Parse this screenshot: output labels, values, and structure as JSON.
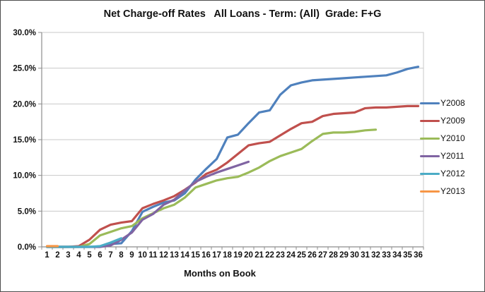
{
  "chart": {
    "title_label": "Net Charge-off Rates   All Loans - Term: (All)  Grade: F+G",
    "x_axis_label": "Months on Book"
  },
  "chart_data": {
    "type": "line",
    "title": "Net Charge-off Rates   All Loans - Term: (All)  Grade: F+G",
    "xlabel": "Months on Book",
    "ylabel": "",
    "x": [
      1,
      2,
      3,
      4,
      5,
      6,
      7,
      8,
      9,
      10,
      11,
      12,
      13,
      14,
      15,
      16,
      17,
      18,
      19,
      20,
      21,
      22,
      23,
      24,
      25,
      26,
      27,
      28,
      29,
      30,
      31,
      32,
      33,
      34,
      35,
      36
    ],
    "ylim": [
      0,
      30
    ],
    "yticks": [
      0,
      5,
      10,
      15,
      20,
      25,
      30
    ],
    "ytick_labels": [
      "0.0%",
      "5.0%",
      "10.0%",
      "15.0%",
      "20.0%",
      "25.0%",
      "30.0%"
    ],
    "grid": true,
    "legend_position": "right",
    "axis_color": "#8c8c8c",
    "grid_color": "#c8c8c8",
    "text_color": "#111111",
    "series": [
      {
        "name": "Y2008",
        "color": "#4F81BD",
        "values": [
          0,
          0,
          0,
          0,
          0,
          0,
          0.4,
          0.5,
          2.2,
          4.9,
          5.6,
          6.2,
          6.5,
          7.5,
          9.4,
          10.9,
          12.3,
          15.3,
          15.7,
          17.3,
          18.8,
          19.1,
          21.3,
          22.6,
          23.0,
          23.3,
          23.4,
          23.5,
          23.6,
          23.7,
          23.8,
          23.9,
          24.0,
          24.4,
          24.9,
          25.2
        ]
      },
      {
        "name": "Y2009",
        "color": "#C0504D",
        "values": [
          0,
          0,
          0,
          0.1,
          1.0,
          2.4,
          3.1,
          3.4,
          3.6,
          5.4,
          6.0,
          6.5,
          7.1,
          8.0,
          9.0,
          10.2,
          10.8,
          11.8,
          13.0,
          14.2,
          14.5,
          14.7,
          15.6,
          16.5,
          17.3,
          17.5,
          18.3,
          18.6,
          18.7,
          18.8,
          19.4,
          19.5,
          19.5,
          19.6,
          19.7,
          19.7
        ]
      },
      {
        "name": "Y2010",
        "color": "#9BBB59",
        "values": [
          0,
          0,
          0,
          0,
          0.4,
          1.6,
          2.1,
          2.6,
          2.9,
          4.0,
          4.7,
          5.4,
          5.9,
          6.9,
          8.3,
          8.8,
          9.3,
          9.6,
          9.8,
          10.4,
          11.1,
          12.0,
          12.7,
          13.2,
          13.7,
          14.8,
          15.8,
          16.0,
          16.0,
          16.1,
          16.3,
          16.4
        ]
      },
      {
        "name": "Y2011",
        "color": "#8064A2",
        "values": [
          0,
          0,
          0,
          0,
          0,
          0,
          0.2,
          1.0,
          2.0,
          3.8,
          4.6,
          5.9,
          6.6,
          7.9,
          9.1,
          9.8,
          10.4,
          10.9,
          11.4,
          11.9
        ]
      },
      {
        "name": "Y2012",
        "color": "#4BACC6",
        "values": [
          0,
          0,
          0,
          0,
          0,
          0.1,
          0.6,
          1.2
        ]
      },
      {
        "name": "Y2013",
        "color": "#F79646",
        "values": [
          0.1,
          0.1
        ]
      }
    ]
  }
}
